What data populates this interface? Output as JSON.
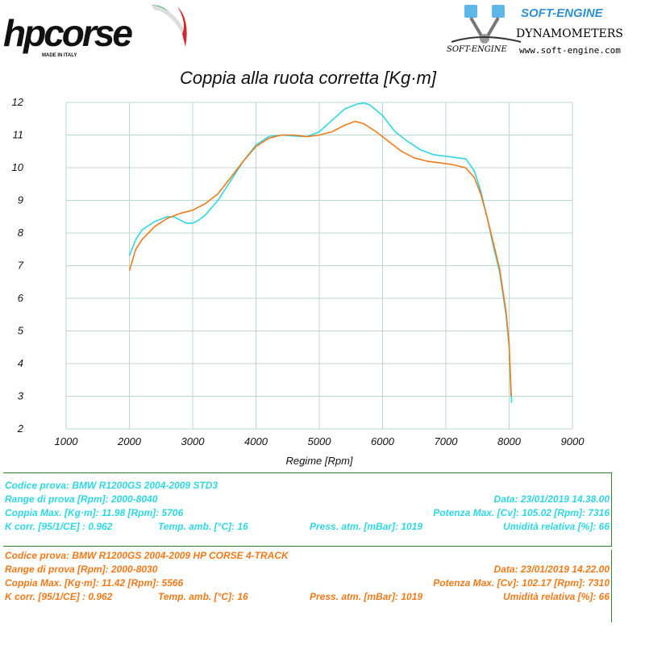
{
  "branding": {
    "left_brand": "hpcorse",
    "left_tagline": "MADE IN ITALY",
    "right_brand": "SOFT-ENGINE",
    "right_title": "DYNAMOMETERS",
    "right_site": "www.soft-engine.com",
    "right_mark": "SOFT-ENGINE"
  },
  "colors": {
    "std3": "#2fd6e3",
    "hp": "#ef7a1a",
    "border": "#2a8a2a",
    "grid": "#b8d9c8"
  },
  "chart_data": {
    "type": "line",
    "title": "Coppia alla ruota corretta [Kg·m]",
    "xlabel": "Regime [Rpm]",
    "ylabel": "",
    "xlim": [
      1000,
      9000
    ],
    "ylim": [
      2,
      12
    ],
    "x_ticks": [
      1000,
      2000,
      3000,
      4000,
      5000,
      6000,
      7000,
      8000,
      9000
    ],
    "y_ticks": [
      2,
      3,
      4,
      5,
      6,
      7,
      8,
      9,
      10,
      11,
      12
    ],
    "grid": true,
    "series": [
      {
        "color": "#2fd6e3",
        "x": [
          2000,
          2100,
          2200,
          2400,
          2600,
          2700,
          2800,
          2900,
          3000,
          3100,
          3200,
          3400,
          3600,
          3800,
          4000,
          4200,
          4400,
          4600,
          4800,
          5000,
          5200,
          5400,
          5600,
          5706,
          5800,
          6000,
          6200,
          6400,
          6600,
          6800,
          7000,
          7200,
          7316,
          7450,
          7550,
          7650,
          7750,
          7850,
          7950,
          8000,
          8040
        ],
        "y": [
          7.3,
          7.8,
          8.1,
          8.35,
          8.5,
          8.5,
          8.4,
          8.3,
          8.3,
          8.4,
          8.55,
          9.0,
          9.6,
          10.2,
          10.7,
          10.95,
          11.0,
          10.97,
          10.95,
          11.1,
          11.45,
          11.8,
          11.95,
          11.98,
          11.92,
          11.6,
          11.1,
          10.8,
          10.55,
          10.4,
          10.35,
          10.3,
          10.27,
          9.9,
          9.3,
          8.5,
          7.6,
          6.8,
          5.5,
          4.5,
          2.8
        ]
      },
      {
        "color": "#ef7a1a",
        "x": [
          2000,
          2100,
          2200,
          2400,
          2600,
          2800,
          3000,
          3200,
          3400,
          3600,
          3800,
          4000,
          4200,
          4400,
          4600,
          4800,
          5000,
          5200,
          5400,
          5566,
          5700,
          5900,
          6100,
          6300,
          6500,
          6700,
          6900,
          7100,
          7310,
          7450,
          7550,
          7650,
          7750,
          7850,
          7950,
          8000,
          8030
        ],
        "y": [
          6.85,
          7.5,
          7.8,
          8.2,
          8.45,
          8.6,
          8.7,
          8.9,
          9.2,
          9.7,
          10.2,
          10.65,
          10.9,
          11.0,
          11.0,
          10.95,
          11.0,
          11.1,
          11.3,
          11.42,
          11.35,
          11.1,
          10.8,
          10.5,
          10.3,
          10.2,
          10.15,
          10.1,
          10.0,
          9.7,
          9.2,
          8.5,
          7.7,
          6.9,
          5.6,
          4.6,
          3.0
        ]
      }
    ]
  },
  "test_a": {
    "codice": "Codice prova: BMW R1200GS 2004-2009 STD3",
    "range": "Range di prova [Rpm]: 2000-8040",
    "data": "Data: 23/01/2019   14.38.00",
    "coppia": "Coppia Max. [Kg·m]: 11.98  [Rpm]: 5706",
    "potenza": "Potenza Max. [Cv]: 105.02  [Rpm]: 7316",
    "kcorr": "K corr. [95/1/CE] : 0.962",
    "temp": "Temp. amb. [°C]: 16",
    "press": "Press. atm. [mBar]: 1019",
    "umid": "Umidità relativa [%]: 66"
  },
  "test_b": {
    "codice": "Codice prova: BMW R1200GS  2004-2009 HP CORSE 4-TRACK",
    "range": "Range di prova [Rpm]: 2000-8030",
    "data": "Data: 23/01/2019   14.22.00",
    "coppia": "Coppia Max. [Kg·m]: 11.42  [Rpm]: 5566",
    "potenza": "Potenza Max. [Cv]: 102.17  [Rpm]: 7310",
    "kcorr": "K corr. [95/1/CE] : 0.962",
    "temp": "Temp. amb. [°C]: 16",
    "press": "Press. atm. [mBar]: 1019",
    "umid": "Umidità relativa [%]: 66"
  }
}
